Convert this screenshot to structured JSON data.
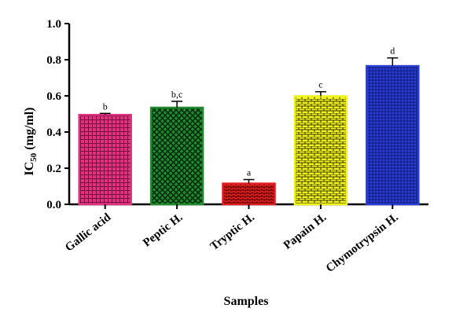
{
  "chart_data": {
    "type": "bar",
    "categories": [
      "Gallic acid",
      "Peptic H.",
      "Tryptic H.",
      "Papain H.",
      "Chymotrypsin H."
    ],
    "values": [
      0.495,
      0.535,
      0.115,
      0.598,
      0.765
    ],
    "errors": [
      0.008,
      0.035,
      0.022,
      0.025,
      0.045
    ],
    "significance_letters": [
      "b",
      "b,c",
      "a",
      "c",
      "d"
    ],
    "colors": [
      "#e0337f",
      "#1f8c2e",
      "#e02020",
      "#f2f21c",
      "#2a3fd6"
    ],
    "xlabel": "Samples",
    "ylabel_main": "IC",
    "ylabel_sub": "50",
    "ylabel_unit": " (mg/ml)",
    "ylim": [
      0,
      1.0
    ],
    "yticks": [
      "0.0",
      "0.2",
      "0.4",
      "0.6",
      "0.8",
      "1.0"
    ],
    "grid": false
  }
}
